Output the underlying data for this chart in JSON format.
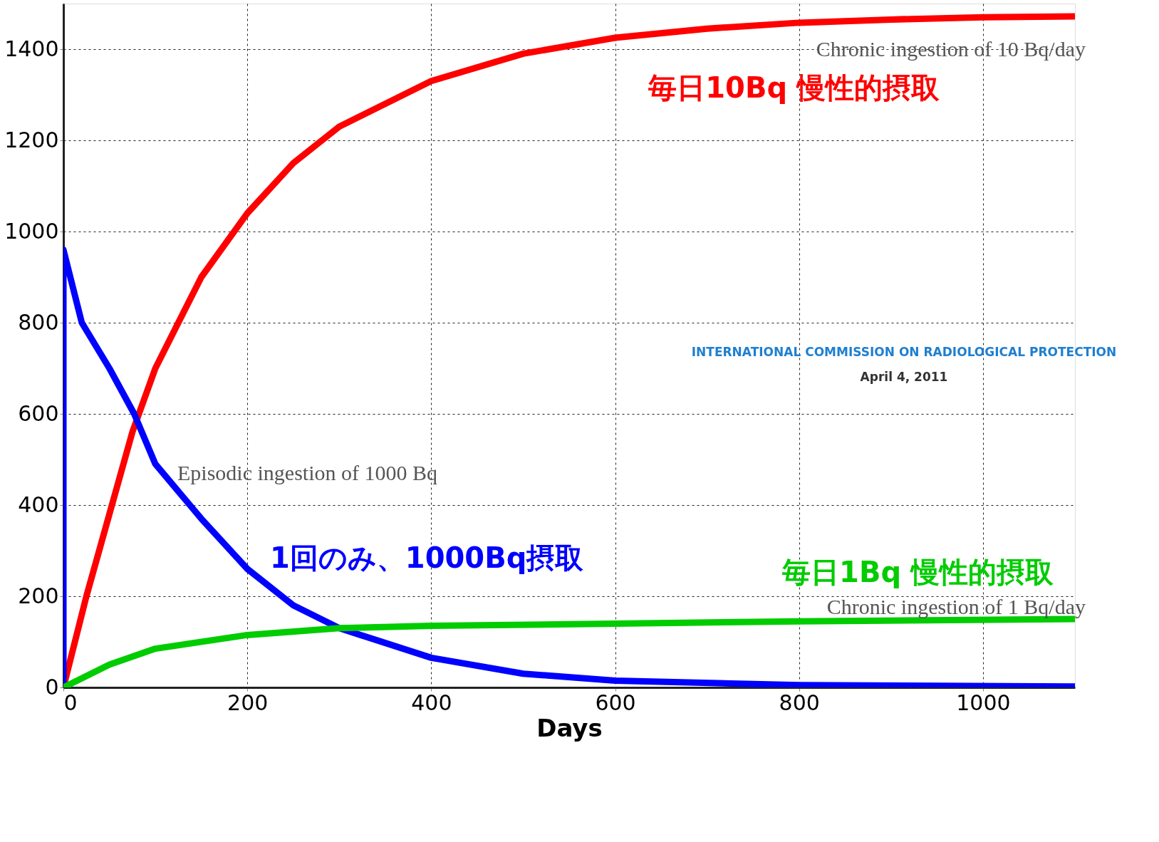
{
  "chart_data": {
    "type": "line",
    "xlabel": "Days",
    "xlim": [
      0,
      1100
    ],
    "ylim": [
      0,
      1500
    ],
    "xticks": [
      0,
      200,
      400,
      600,
      800,
      1000
    ],
    "yticks": [
      0,
      200,
      400,
      600,
      800,
      1000,
      1200,
      1400
    ],
    "grid": true,
    "legend": false,
    "line_style": "solid",
    "series": [
      {
        "name": "毎日10Bq  慢性的摂取",
        "color": "#ff0000",
        "x": [
          0,
          25,
          50,
          75,
          100,
          150,
          200,
          250,
          300,
          400,
          500,
          600,
          700,
          800,
          900,
          1000,
          1100
        ],
        "values": [
          0,
          200,
          380,
          560,
          700,
          900,
          1040,
          1150,
          1230,
          1330,
          1390,
          1425,
          1445,
          1458,
          1465,
          1470,
          1472
        ]
      },
      {
        "name": "1回のみ、1000Bq摂取",
        "color": "#0000ff",
        "x": [
          0,
          0,
          20,
          50,
          77,
          100,
          150,
          200,
          250,
          300,
          400,
          500,
          600,
          800,
          1100
        ],
        "values": [
          0,
          960,
          800,
          700,
          600,
          490,
          370,
          260,
          180,
          130,
          65,
          30,
          15,
          5,
          2
        ]
      },
      {
        "name": "毎日1Bq  慢性的摂取",
        "color": "#00cc00",
        "x": [
          0,
          50,
          100,
          200,
          300,
          400,
          600,
          800,
          1100
        ],
        "values": [
          0,
          50,
          85,
          115,
          130,
          135,
          140,
          145,
          150
        ]
      }
    ],
    "annotations": [
      "Chronic ingestion of 10 Bq/day",
      "Episodic ingestion of 1000 Bq",
      "Chronic ingestion of 1 Bq/day",
      "INTERNATIONAL COMMISSION ON RADIOLOGICAL PROTECTION",
      "April 4, 2011"
    ]
  }
}
